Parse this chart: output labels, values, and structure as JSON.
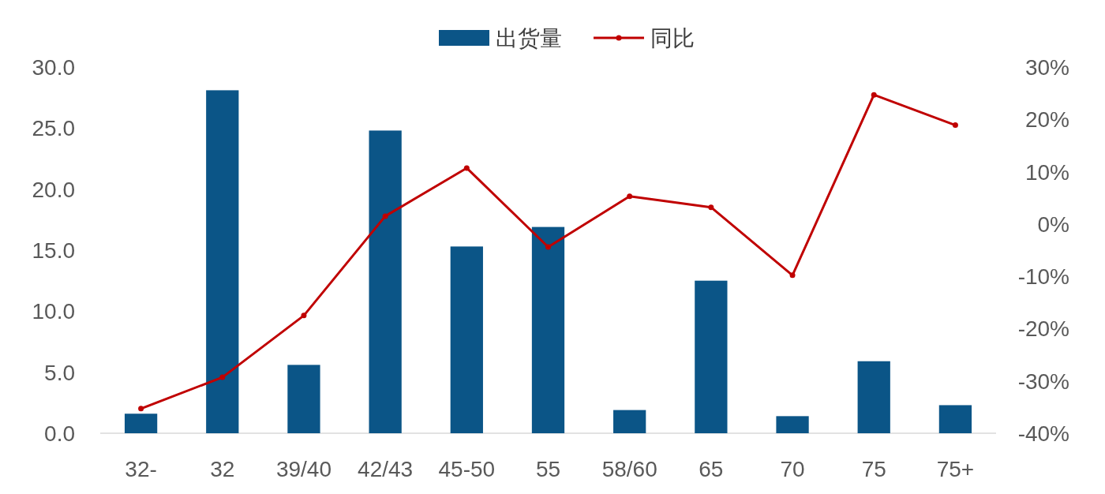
{
  "chart_data": {
    "type": "bar",
    "categories": [
      "32-",
      "32",
      "39/40",
      "42/43",
      "45-50",
      "55",
      "58/60",
      "65",
      "70",
      "75",
      "75+"
    ],
    "series": [
      {
        "name": "出货量",
        "color": "#0b5587",
        "values": [
          1.6,
          28.1,
          5.6,
          24.8,
          15.3,
          16.9,
          1.9,
          12.5,
          1.4,
          5.9,
          2.3
        ]
      },
      {
        "name": "同比",
        "type": "line",
        "axis": "y2",
        "color": "#c00000",
        "marker": "circle",
        "values": [
          -35.3,
          -29.3,
          -17.5,
          1.5,
          10.7,
          -4.4,
          5.3,
          3.2,
          -9.8,
          24.7,
          18.9
        ]
      }
    ],
    "ylim": [
      0,
      30
    ],
    "yticks": [
      {
        "value": 0,
        "label": "0.0"
      },
      {
        "value": 5,
        "label": "5.0"
      },
      {
        "value": 10,
        "label": "10.0"
      },
      {
        "value": 15,
        "label": "15.0"
      },
      {
        "value": 20,
        "label": "20.0"
      },
      {
        "value": 25,
        "label": "25.0"
      },
      {
        "value": 30,
        "label": "30.0"
      }
    ],
    "y2lim": [
      -40,
      30
    ],
    "y2ticks": [
      {
        "value": -40,
        "label": "-40%"
      },
      {
        "value": -30,
        "label": "-30%"
      },
      {
        "value": -20,
        "label": "-20%"
      },
      {
        "value": -10,
        "label": "-10%"
      },
      {
        "value": 0,
        "label": "0%"
      },
      {
        "value": 10,
        "label": "10%"
      },
      {
        "value": 20,
        "label": "20%"
      },
      {
        "value": 30,
        "label": "30%"
      }
    ],
    "grid": false,
    "legend": "top"
  }
}
